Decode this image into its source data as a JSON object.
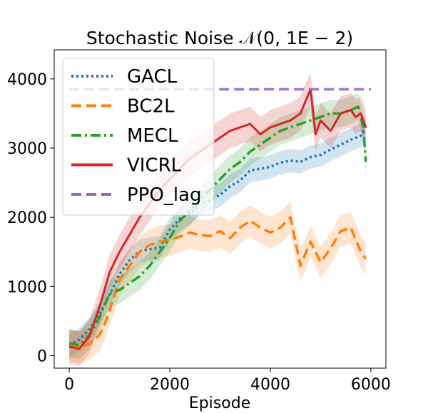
{
  "chart_data": {
    "type": "line",
    "title": "Stochastic Noise 𝒩(0, 1E − 2)",
    "xlabel": "Episode",
    "ylabel": "",
    "xlim": [
      -300,
      6300
    ],
    "ylim": [
      -180,
      4420
    ],
    "xticks": [
      0,
      2000,
      4000,
      6000
    ],
    "xtick_labels": [
      "0",
      "2000",
      "4000",
      "6000"
    ],
    "yticks": [
      0,
      1000,
      2000,
      3000,
      4000
    ],
    "ytick_labels": [
      "0",
      "1000",
      "2000",
      "3000",
      "4000"
    ],
    "grid": false,
    "legend_position": "top-left",
    "series": [
      {
        "name": "GACL",
        "color": "#1f77b4",
        "style": "dotted",
        "band": 170,
        "x": [
          0,
          200,
          400,
          600,
          800,
          1000,
          1200,
          1400,
          1600,
          1800,
          2000,
          2200,
          2400,
          2600,
          2800,
          3000,
          3200,
          3400,
          3600,
          3800,
          4000,
          4200,
          4400,
          4600,
          4800,
          5000,
          5200,
          5400,
          5600,
          5800,
          5900
        ],
        "values": [
          150,
          230,
          380,
          600,
          880,
          1180,
          1380,
          1510,
          1540,
          1560,
          1820,
          1980,
          2050,
          2200,
          2250,
          2320,
          2450,
          2530,
          2680,
          2700,
          2730,
          2790,
          2820,
          2800,
          2870,
          2900,
          2980,
          3050,
          3120,
          3180,
          3320
        ]
      },
      {
        "name": "BC2L",
        "color": "#ff7f0e",
        "style": "dashed",
        "band": 230,
        "x": [
          0,
          200,
          400,
          600,
          700,
          800,
          1000,
          1200,
          1400,
          1600,
          1800,
          2000,
          2200,
          2400,
          2600,
          2800,
          3000,
          3200,
          3400,
          3600,
          3800,
          4000,
          4200,
          4400,
          4600,
          4800,
          5000,
          5200,
          5400,
          5600,
          5800,
          5900
        ],
        "values": [
          150,
          120,
          170,
          300,
          450,
          650,
          1100,
          1300,
          1500,
          1600,
          1650,
          1670,
          1720,
          1780,
          1740,
          1730,
          1800,
          1700,
          1850,
          1950,
          1850,
          1780,
          1850,
          2000,
          1300,
          1650,
          1350,
          1550,
          1800,
          1850,
          1500,
          1400
        ]
      },
      {
        "name": "MECL",
        "color": "#2ca02c",
        "style": "dashdot",
        "band": 200,
        "x": [
          0,
          200,
          400,
          600,
          800,
          1000,
          1200,
          1400,
          1600,
          1800,
          2000,
          2200,
          2400,
          2600,
          2800,
          3000,
          3200,
          3400,
          3600,
          3800,
          4000,
          4200,
          4400,
          4600,
          4800,
          5000,
          5200,
          5400,
          5600,
          5750,
          5850,
          5900
        ],
        "values": [
          180,
          150,
          300,
          550,
          900,
          950,
          1050,
          1150,
          1300,
          1500,
          1700,
          1950,
          2100,
          2250,
          2400,
          2550,
          2700,
          2800,
          2950,
          3050,
          3150,
          3250,
          3300,
          3350,
          3400,
          3450,
          3500,
          3500,
          3550,
          3600,
          3300,
          2800
        ]
      },
      {
        "name": "VICRL",
        "color": "#d62728",
        "style": "solid",
        "band": 250,
        "x": [
          0,
          200,
          400,
          600,
          800,
          1000,
          1200,
          1400,
          1600,
          1800,
          2000,
          2200,
          2400,
          2600,
          2800,
          3000,
          3200,
          3400,
          3600,
          3800,
          4000,
          4200,
          4400,
          4600,
          4800,
          4900,
          5000,
          5200,
          5400,
          5600,
          5700,
          5800,
          5900
        ],
        "values": [
          130,
          100,
          280,
          700,
          1200,
          1500,
          1750,
          2000,
          2200,
          2400,
          2550,
          2700,
          2850,
          2950,
          3050,
          3150,
          3250,
          3300,
          3350,
          3200,
          3300,
          3350,
          3400,
          3500,
          3850,
          3200,
          3400,
          3250,
          3500,
          3550,
          3450,
          3500,
          3300
        ]
      },
      {
        "name": "PPO_lag",
        "color": "#9467bd",
        "style": "dashed",
        "band": 0,
        "x": [
          0,
          6000
        ],
        "values": [
          3850,
          3850
        ]
      }
    ]
  }
}
